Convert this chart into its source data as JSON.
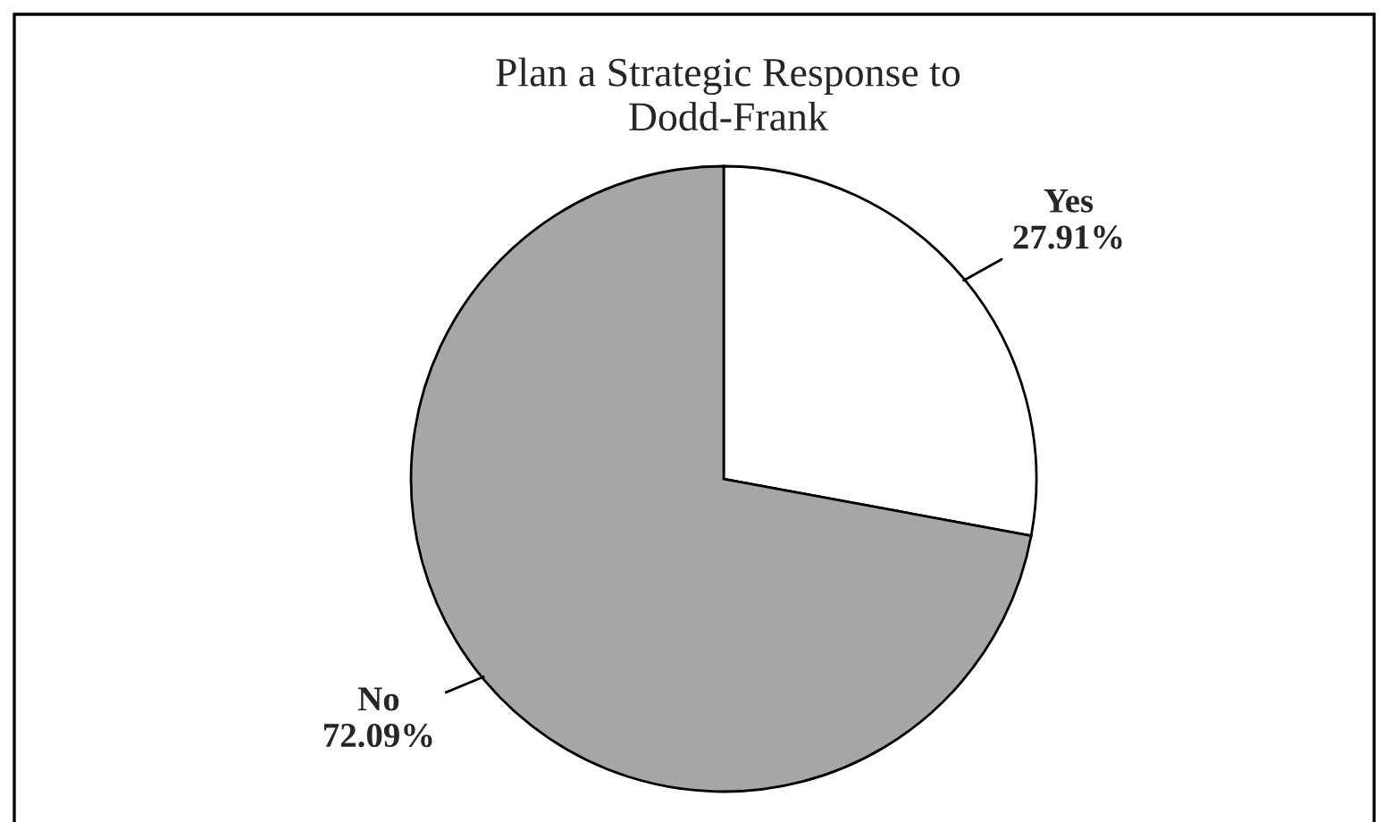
{
  "chart_data": {
    "type": "pie",
    "title": "Plan a Strategic Response to\nDodd-Frank",
    "categories": [
      "Yes",
      "No"
    ],
    "values": [
      27.91,
      72.09
    ],
    "colors": [
      "#ffffff",
      "#a6a6a6"
    ],
    "value_labels": [
      "27.91%",
      "72.09%"
    ],
    "legend": false
  }
}
